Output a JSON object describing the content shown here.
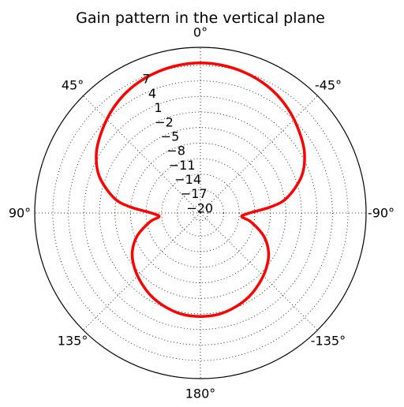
{
  "chart_data": {
    "type": "polar-line",
    "title": "Gain pattern in the vertical plane",
    "theta_zero_location": "top",
    "theta_direction": "counter-clockwise",
    "theta_ticks": [
      {
        "angle": 0,
        "label": "0°"
      },
      {
        "angle": 45,
        "label": "45°"
      },
      {
        "angle": 90,
        "label": "90°"
      },
      {
        "angle": 135,
        "label": "135°"
      },
      {
        "angle": 180,
        "label": "180°"
      },
      {
        "angle": -135,
        "label": "-135°"
      },
      {
        "angle": -90,
        "label": "-90°"
      },
      {
        "angle": -45,
        "label": "-45°"
      }
    ],
    "r_ticks": [
      -20,
      -17,
      -14,
      -11,
      -8,
      -5,
      -2,
      1,
      4,
      7
    ],
    "r_tick_labels": [
      "−20",
      "−17",
      "−14",
      "−11",
      "−8",
      "−5",
      "−2",
      "1",
      "4",
      "7"
    ],
    "r_min": -21.5,
    "r_max": 10.5,
    "grid": true,
    "line_color": "#ff0000",
    "series": [
      {
        "theta_deg": [
          0,
          10,
          20,
          30,
          40,
          50,
          60,
          70,
          80,
          85,
          90,
          95,
          100,
          110,
          120,
          130,
          140,
          150,
          160,
          170,
          180,
          190,
          200,
          210,
          220,
          230,
          240,
          250,
          260,
          265,
          270,
          275,
          280,
          290,
          300,
          310,
          320,
          330,
          340,
          350,
          360
        ],
        "gain_db": [
          7.5,
          7.3,
          6.8,
          6.0,
          4.8,
          3.3,
          1.7,
          -0.7,
          -4.5,
          -7.8,
          -12.0,
          -13.5,
          -11.6,
          -8.5,
          -6.3,
          -4.9,
          -3.8,
          -2.8,
          -2.1,
          -1.6,
          -1.5,
          -1.6,
          -2.1,
          -2.8,
          -3.8,
          -4.9,
          -6.3,
          -8.5,
          -11.6,
          -13.5,
          -12.0,
          -7.8,
          -4.5,
          -0.7,
          1.7,
          3.3,
          4.8,
          6.0,
          6.8,
          7.3,
          7.5
        ]
      }
    ]
  }
}
